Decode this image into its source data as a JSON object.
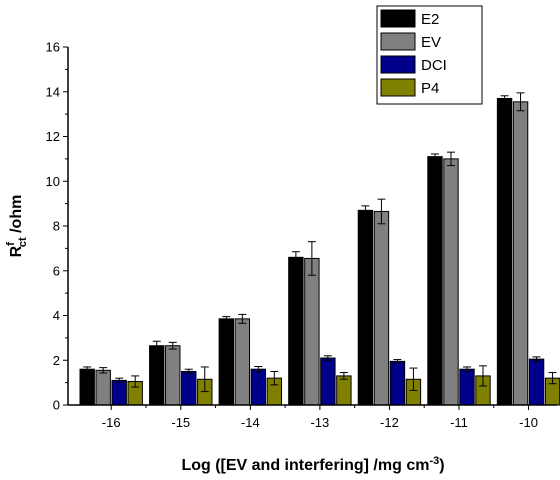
{
  "chart_data": {
    "type": "bar",
    "xlabel": "Log ([EV and interfering] /mg cm",
    "xlabel_sup": "-3",
    "xlabel_end": ")",
    "ylabel_main": "R",
    "ylabel_sup": "f",
    "ylabel_sub": "ct",
    "ylabel_unit": " /ohm",
    "categories": [
      "-16",
      "-15",
      "-14",
      "-13",
      "-12",
      "-11",
      "-10"
    ],
    "ylim": [
      0,
      16
    ],
    "yticks": [
      "0",
      "2",
      "4",
      "6",
      "8",
      "10",
      "12",
      "14",
      "16"
    ],
    "legend_position": "top-right",
    "series": [
      {
        "name": "E2",
        "color": "#000000",
        "values": [
          1.6,
          2.65,
          3.85,
          6.6,
          8.7,
          11.1,
          13.7
        ],
        "errors": [
          0.1,
          0.2,
          0.1,
          0.25,
          0.2,
          0.12,
          0.12
        ]
      },
      {
        "name": "EV",
        "color": "#808080",
        "values": [
          1.55,
          2.65,
          3.85,
          6.55,
          8.65,
          11.0,
          13.55
        ],
        "errors": [
          0.12,
          0.15,
          0.2,
          0.75,
          0.55,
          0.3,
          0.4
        ]
      },
      {
        "name": "DCI",
        "color": "#00008b",
        "values": [
          1.1,
          1.5,
          1.6,
          2.1,
          1.95,
          1.6,
          2.05
        ],
        "errors": [
          0.1,
          0.1,
          0.12,
          0.1,
          0.08,
          0.1,
          0.1
        ]
      },
      {
        "name": "P4",
        "color": "#808000",
        "values": [
          1.05,
          1.15,
          1.2,
          1.3,
          1.15,
          1.3,
          1.2
        ],
        "errors": [
          0.25,
          0.55,
          0.3,
          0.15,
          0.5,
          0.45,
          0.25
        ]
      }
    ]
  }
}
